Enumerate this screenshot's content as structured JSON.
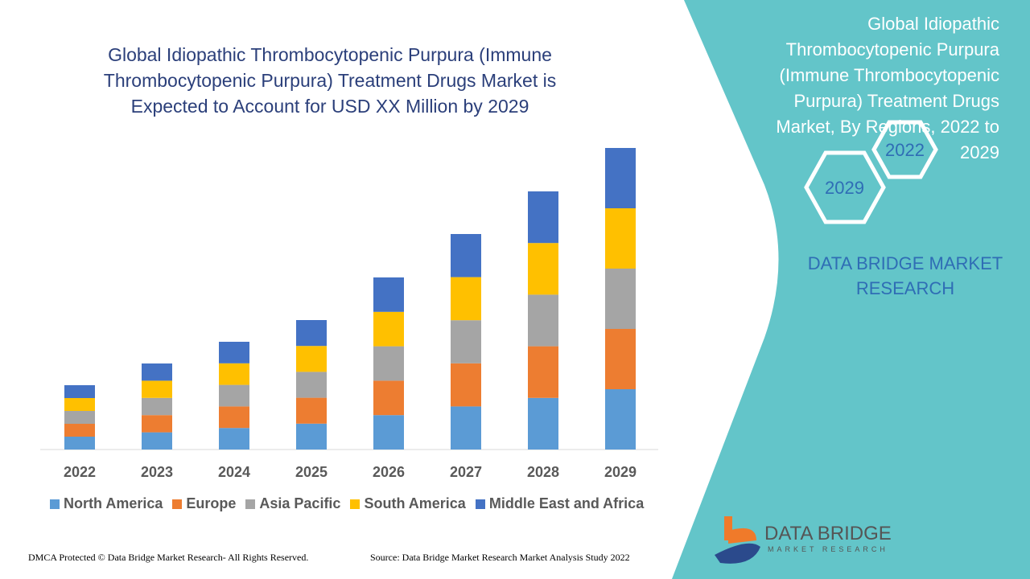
{
  "title": "Global Idiopathic Thrombocytopenic Purpura (Immune Thrombocytopenic Purpura) Treatment Drugs Market is Expected to Account for USD XX Million by 2029",
  "side_panel": {
    "title": "Global Idiopathic Thrombocytopenic Purpura (Immune Thrombocytopenic Purpura) Treatment Drugs Market, By Regions, 2022 to 2029",
    "hex_start": "2022",
    "hex_end": "2029",
    "brand": "DATA BRIDGE MARKET RESEARCH",
    "panel_color": "#63c5c9"
  },
  "logo": {
    "name": "DATA BRIDGE",
    "sub": "MARKET RESEARCH"
  },
  "footer": {
    "left": "DMCA Protected © Data Bridge Market Research- All Rights Reserved.",
    "right": "Source: Data Bridge Market Research Market Analysis Study 2022"
  },
  "chart_data": {
    "type": "bar",
    "stacked": true,
    "grid": false,
    "legend": "bottom",
    "categories": [
      "2022",
      "2023",
      "2024",
      "2025",
      "2026",
      "2027",
      "2028",
      "2029"
    ],
    "series": [
      {
        "name": "North America",
        "color": "#5b9bd5",
        "values": [
          16,
          21.4,
          26.8,
          32.2,
          42.8,
          53.6,
          64.2,
          75
        ]
      },
      {
        "name": "Europe",
        "color": "#ed7d31",
        "values": [
          16,
          21.4,
          26.8,
          32.2,
          42.8,
          53.6,
          64.2,
          75
        ]
      },
      {
        "name": "Asia Pacific",
        "color": "#a5a5a5",
        "values": [
          16,
          21.4,
          26.8,
          32.2,
          42.8,
          53.6,
          64.2,
          75
        ]
      },
      {
        "name": "South America",
        "color": "#ffc000",
        "values": [
          16,
          21.4,
          26.8,
          32.2,
          42.8,
          53.6,
          64.2,
          75
        ]
      },
      {
        "name": "Middle East and Africa",
        "color": "#4472c4",
        "values": [
          16,
          21.4,
          26.8,
          32.2,
          42.8,
          53.6,
          64.2,
          75
        ]
      }
    ]
  }
}
